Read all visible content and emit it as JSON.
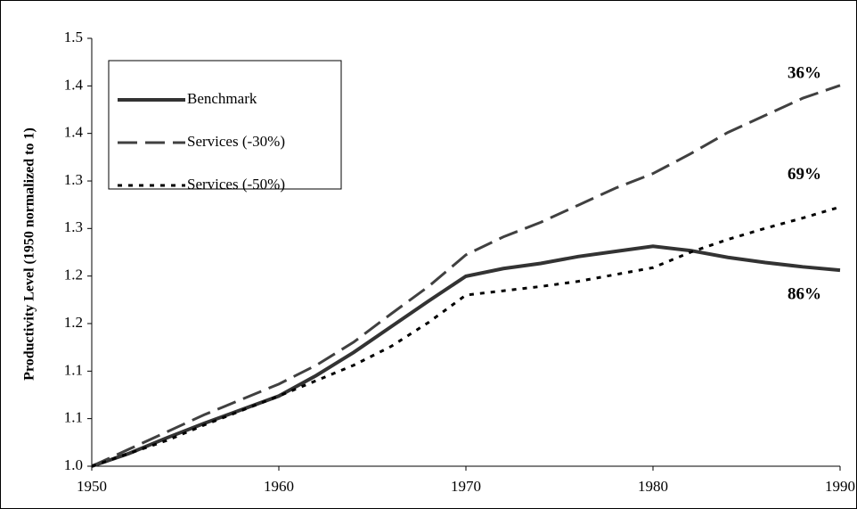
{
  "chart_data": {
    "type": "line",
    "y_label": "Productivity Level (1950 normalized to 1)",
    "x": [
      1950,
      1952,
      1954,
      1956,
      1958,
      1960,
      1962,
      1964,
      1966,
      1968,
      1970,
      1972,
      1974,
      1976,
      1978,
      1980,
      1982,
      1984,
      1986,
      1988,
      1990
    ],
    "series": [
      {
        "name": "Benchmark",
        "color": "#333333",
        "style": "solid",
        "values": [
          1.0,
          1.015,
          1.033,
          1.05,
          1.066,
          1.082,
          1.106,
          1.133,
          1.163,
          1.193,
          1.222,
          1.231,
          1.237,
          1.245,
          1.251,
          1.257,
          1.252,
          1.244,
          1.238,
          1.233,
          1.229
        ]
      },
      {
        "name": "Services (-30%)",
        "color": "#404040",
        "style": "dashed",
        "values": [
          1.0,
          1.02,
          1.04,
          1.06,
          1.078,
          1.096,
          1.118,
          1.145,
          1.178,
          1.21,
          1.247,
          1.268,
          1.285,
          1.305,
          1.325,
          1.342,
          1.365,
          1.39,
          1.41,
          1.43,
          1.445
        ]
      },
      {
        "name": "Services (-50%)",
        "color": "#000000",
        "style": "dotted",
        "values": [
          1.0,
          1.015,
          1.03,
          1.048,
          1.065,
          1.082,
          1.1,
          1.118,
          1.14,
          1.168,
          1.2,
          1.205,
          1.21,
          1.216,
          1.224,
          1.232,
          1.25,
          1.265,
          1.278,
          1.29,
          1.303
        ]
      }
    ],
    "annotations": [
      {
        "text": "36%",
        "x": 1989,
        "y": 1.458
      },
      {
        "text": "69%",
        "x": 1989,
        "y": 1.34
      },
      {
        "text": "86%",
        "x": 1989,
        "y": 1.2
      }
    ],
    "xlim": [
      1950,
      1990
    ],
    "xticks": [
      1950,
      1960,
      1970,
      1980,
      1990
    ],
    "ylim": [
      1.0,
      1.5
    ],
    "yticks": [
      {
        "value": 1.0,
        "label": "1.0"
      },
      {
        "value": 1.0556,
        "label": "1.1"
      },
      {
        "value": 1.1111,
        "label": "1.1"
      },
      {
        "value": 1.1667,
        "label": "1.2"
      },
      {
        "value": 1.2222,
        "label": "1.2"
      },
      {
        "value": 1.2778,
        "label": "1.3"
      },
      {
        "value": 1.3333,
        "label": "1.3"
      },
      {
        "value": 1.3889,
        "label": "1.4"
      },
      {
        "value": 1.4444,
        "label": "1.4"
      },
      1.5
    ],
    "legend": "upper left",
    "grid": false
  }
}
